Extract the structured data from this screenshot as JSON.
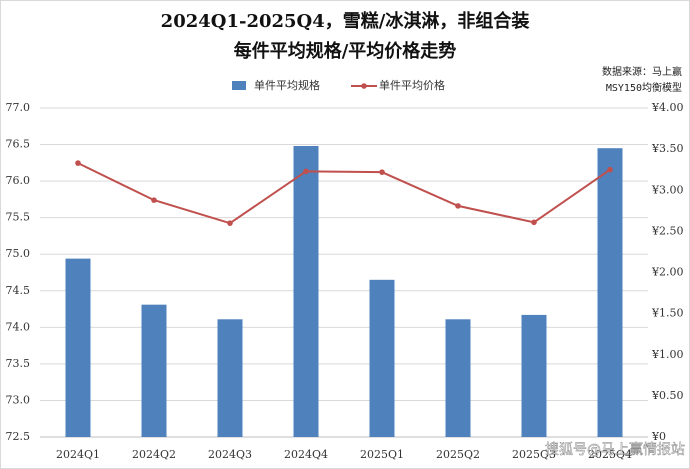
{
  "chart_data": {
    "type": "bar_line",
    "title": "2024Q1-2025Q4，雪糕/冰淇淋，非组合装",
    "subtitle": "每件平均规格/平均价格走势",
    "source": "数据来源：马上赢",
    "model": "MSY150均衡模型",
    "watermark": "搜狐号@马上赢情报站",
    "categories": [
      "2024Q1",
      "2024Q2",
      "2024Q3",
      "2024Q4",
      "2025Q1",
      "2025Q2",
      "2025Q3",
      "2025Q4"
    ],
    "series": [
      {
        "name": "单件平均规格",
        "color": "#4f81bd",
        "kind": "bar",
        "values": [
          74.94,
          74.31,
          74.11,
          76.48,
          74.65,
          74.11,
          74.17,
          76.45
        ]
      },
      {
        "name": "单件平均价格",
        "color": "#c0504d",
        "kind": "line",
        "axis": "y2",
        "values": [
          3.33,
          2.88,
          2.6,
          3.23,
          3.22,
          2.81,
          2.61,
          3.25
        ]
      }
    ],
    "ylim": [
      72.5,
      77.0
    ],
    "yticks": [
      {
        "value": 72.5,
        "label": "72.5"
      },
      {
        "value": 73,
        "label": "73.0"
      },
      73.5,
      {
        "value": 74,
        "label": "74.0"
      },
      74.5,
      {
        "value": 75,
        "label": "75.0"
      },
      75.5,
      {
        "value": 76,
        "label": "76.0"
      },
      76.5,
      {
        "value": 77,
        "label": "77.0"
      }
    ],
    "y2lim": [
      0,
      4
    ],
    "y2ticks": [
      {
        "value": 0,
        "label": "¥0"
      },
      {
        "value": 0.5,
        "label": "¥0.50"
      },
      {
        "value": 1,
        "label": "¥1.00"
      },
      {
        "value": 1.5,
        "label": "¥1.50"
      },
      {
        "value": 2,
        "label": "¥2.00"
      },
      {
        "value": 2.5,
        "label": "¥2.50"
      },
      {
        "value": 3,
        "label": "¥3.00"
      },
      {
        "value": 3.5,
        "label": "¥3.50"
      },
      {
        "value": 4,
        "label": "¥4.00"
      }
    ],
    "grid": true
  }
}
